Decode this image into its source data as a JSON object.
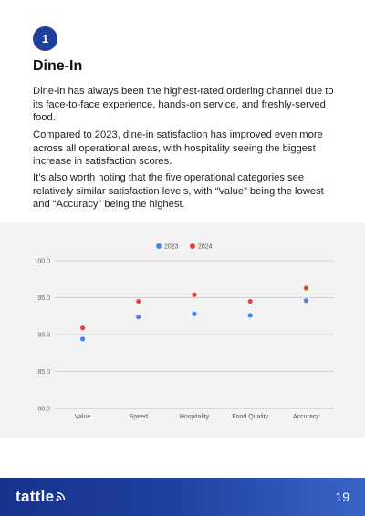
{
  "section": {
    "number": "1",
    "title": "Dine-In",
    "paragraphs": [
      "Dine-in has always been the highest-rated ordering channel due to its face-to-face experience, hands-on service, and freshly-served food.",
      "Compared to 2023, dine-in satisfaction has improved even more across all operational areas, with hospitality seeing the biggest increase in satisfaction scores.",
      "It’s also worth noting that the five operational categories see relatively similar satisfaction levels, with “Value” being the lowest and “Accuracy” being the highest."
    ]
  },
  "chart_data": {
    "type": "scatter",
    "categories": [
      "Value",
      "Speed",
      "Hospitality",
      "Food Quality",
      "Accuracy"
    ],
    "series": [
      {
        "name": "2023",
        "color": "#4285f4",
        "values": [
          89.4,
          92.4,
          92.8,
          92.6,
          94.6
        ]
      },
      {
        "name": "2024",
        "color": "#ea4335",
        "values": [
          90.9,
          94.5,
          95.4,
          94.5,
          96.3
        ]
      }
    ],
    "ylim": [
      80,
      100
    ],
    "yticks": [
      "100.0",
      "95.0",
      "90.0",
      "85.0",
      "80.0"
    ],
    "grid": true,
    "legend": "top-center"
  },
  "footer": {
    "brand": "tattle",
    "page_number": "19"
  }
}
